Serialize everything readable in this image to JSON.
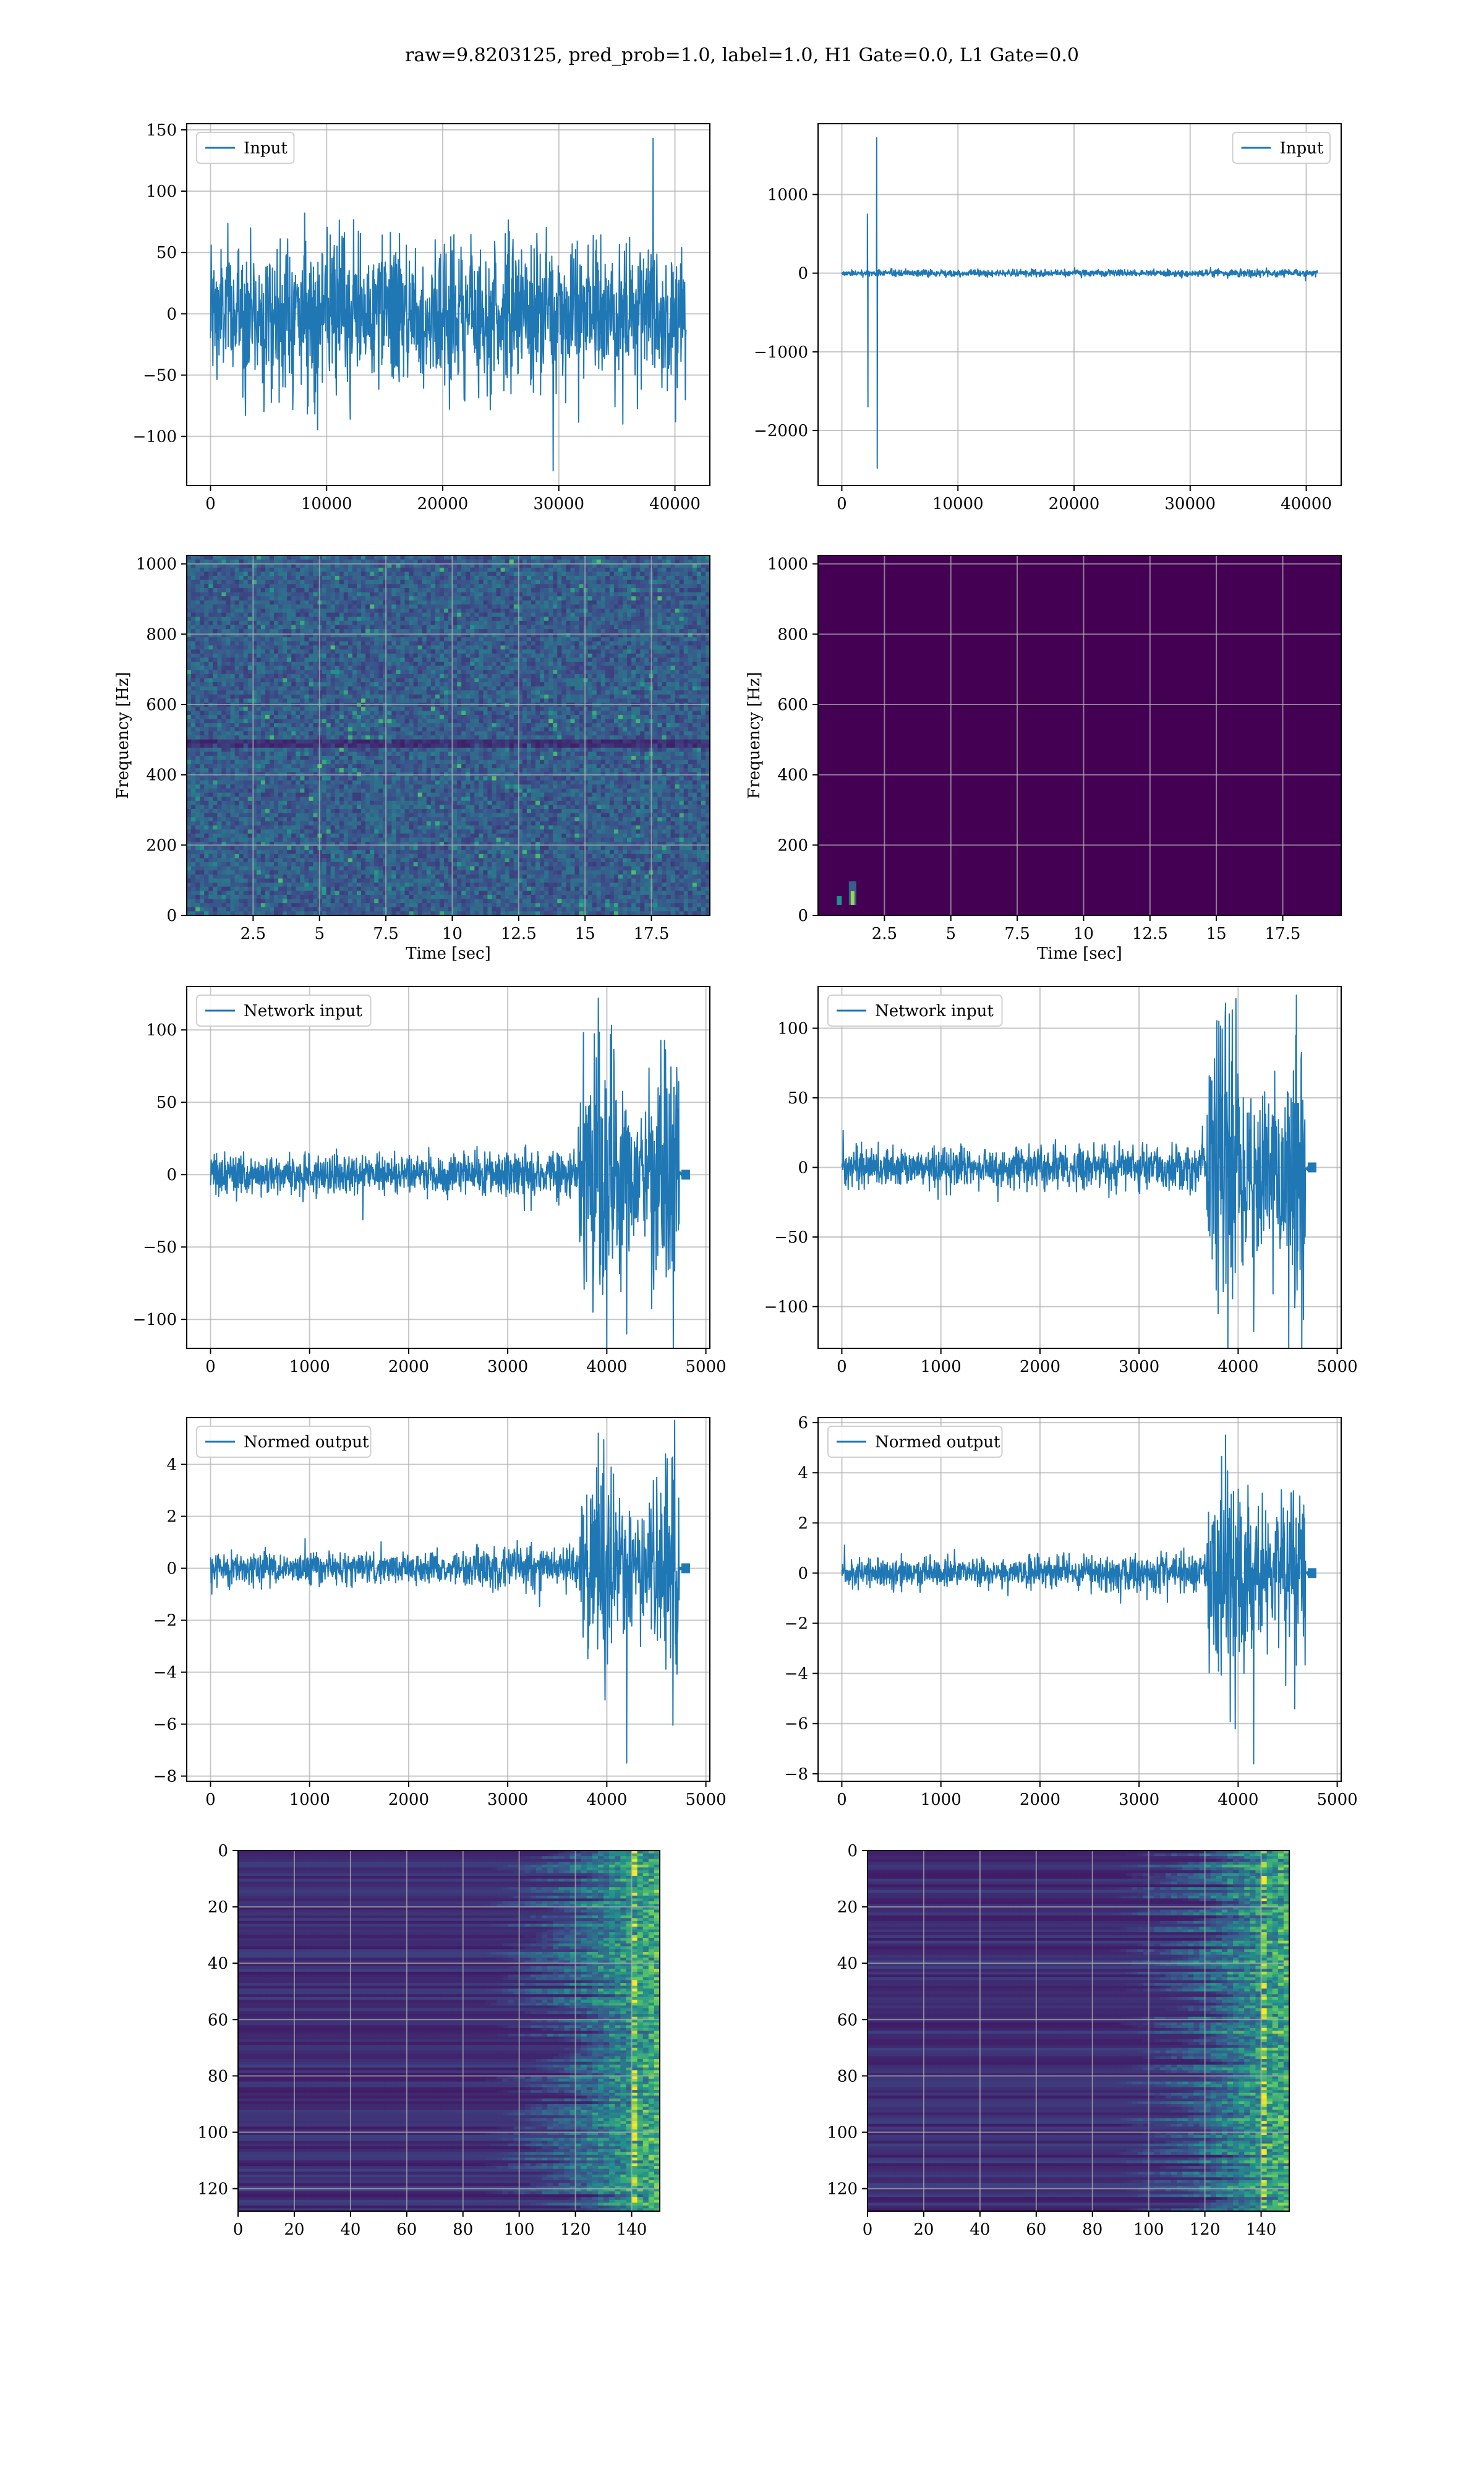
{
  "figure": {
    "title": "raw=9.8203125, pred_prob=1.0, label=1.0, H1 Gate=0.0, L1 Gate=0.0"
  },
  "colors": {
    "line": "#1f77b4",
    "grid": "#b0b0b0",
    "viridis": [
      "#440154",
      "#3b528b",
      "#21918c",
      "#5ec962",
      "#fde725"
    ]
  },
  "chart_data": [
    {
      "id": "input-h1",
      "type": "line",
      "row": 0,
      "col": 0,
      "signal": "noise",
      "length": 40960,
      "amplitude": 30,
      "peak": 143,
      "trough": -128,
      "series": [
        {
          "name": "Input"
        }
      ],
      "legend": "upper left",
      "xlim": [
        -2048,
        43008
      ],
      "ylim": [
        -140,
        155
      ],
      "xticks": [
        0,
        10000,
        20000,
        30000,
        40000
      ],
      "yticks": [
        -100,
        -50,
        0,
        50,
        100,
        150
      ],
      "xlabel": "",
      "ylabel": "",
      "grid": true
    },
    {
      "id": "input-l1",
      "type": "line",
      "row": 0,
      "col": 1,
      "signal": "glitch",
      "length": 40960,
      "amplitude": 22,
      "glitches": [
        {
          "x": 2200,
          "y": 750
        },
        {
          "x": 2250,
          "y": -1700
        },
        {
          "x": 3000,
          "y": 1720
        },
        {
          "x": 3050,
          "y": -2480
        }
      ],
      "series": [
        {
          "name": "Input"
        }
      ],
      "legend": "upper right",
      "xlim": [
        -2048,
        43008
      ],
      "ylim": [
        -2700,
        1900
      ],
      "xticks": [
        0,
        10000,
        20000,
        30000,
        40000
      ],
      "yticks": [
        -2000,
        -1000,
        0,
        1000
      ],
      "xlabel": "",
      "ylabel": "",
      "grid": true
    },
    {
      "id": "spectrogram-h1",
      "type": "heatmap",
      "row": 1,
      "col": 0,
      "pattern": "noise",
      "xlim": [
        0,
        19.7
      ],
      "ylim": [
        0,
        1024
      ],
      "xticks": [
        2.5,
        5.0,
        7.5,
        10.0,
        12.5,
        15.0,
        17.5
      ],
      "yticks": [
        0,
        200,
        400,
        600,
        800,
        1000
      ],
      "xlabel": "Time [sec]",
      "ylabel": "Frequency [Hz]",
      "grid": true
    },
    {
      "id": "spectrogram-l1",
      "type": "heatmap",
      "row": 1,
      "col": 1,
      "pattern": "empty",
      "xlim": [
        0,
        19.7
      ],
      "ylim": [
        0,
        1024
      ],
      "xticks": [
        2.5,
        5.0,
        7.5,
        10.0,
        12.5,
        15.0,
        17.5
      ],
      "yticks": [
        0,
        200,
        400,
        600,
        800,
        1000
      ],
      "xlabel": "Time [sec]",
      "ylabel": "Frequency [Hz]",
      "grid": true
    },
    {
      "id": "network-input-h1",
      "type": "line",
      "row": 2,
      "col": 0,
      "signal": "chirp",
      "length": 4770,
      "amplitude": 7,
      "peak": 122,
      "trough": -110,
      "series": [
        {
          "name": "Network input"
        }
      ],
      "legend": "upper left",
      "xlim": [
        -240,
        5040
      ],
      "ylim": [
        -120,
        130
      ],
      "xticks": [
        0,
        1000,
        2000,
        3000,
        4000,
        5000
      ],
      "yticks": [
        -100,
        -50,
        0,
        50,
        100
      ],
      "xlabel": "",
      "ylabel": "",
      "grid": true
    },
    {
      "id": "network-input-l1",
      "type": "line",
      "row": 2,
      "col": 1,
      "signal": "chirp",
      "length": 4720,
      "amplitude": 7,
      "peak": 118,
      "trough": -118,
      "series": [
        {
          "name": "Network input"
        }
      ],
      "legend": "upper left",
      "xlim": [
        -240,
        5040
      ],
      "ylim": [
        -130,
        130
      ],
      "xticks": [
        0,
        1000,
        2000,
        3000,
        4000,
        5000
      ],
      "yticks": [
        -100,
        -50,
        0,
        50,
        100
      ],
      "xlabel": "",
      "ylabel": "",
      "grid": true
    },
    {
      "id": "normed-output-h1",
      "type": "line",
      "row": 3,
      "col": 0,
      "signal": "chirp",
      "length": 4770,
      "amplitude": 0.3,
      "peak": 5.2,
      "trough": -7.5,
      "series": [
        {
          "name": "Normed output"
        }
      ],
      "legend": "upper left",
      "xlim": [
        -240,
        5040
      ],
      "ylim": [
        -8.2,
        5.8
      ],
      "xticks": [
        0,
        1000,
        2000,
        3000,
        4000,
        5000
      ],
      "yticks": [
        -8,
        -6,
        -4,
        -2,
        0,
        2,
        4
      ],
      "xlabel": "",
      "ylabel": "",
      "grid": true
    },
    {
      "id": "normed-output-l1",
      "type": "line",
      "row": 3,
      "col": 1,
      "signal": "chirp",
      "length": 4720,
      "amplitude": 0.3,
      "peak": 5.5,
      "trough": -7.6,
      "series": [
        {
          "name": "Normed output"
        }
      ],
      "legend": "upper left",
      "xlim": [
        -240,
        5040
      ],
      "ylim": [
        -8.3,
        6.2
      ],
      "xticks": [
        0,
        1000,
        2000,
        3000,
        4000,
        5000
      ],
      "yticks": [
        -8,
        -6,
        -4,
        -2,
        0,
        2,
        4,
        6
      ],
      "xlabel": "",
      "ylabel": "",
      "grid": true
    },
    {
      "id": "feature-map-h1",
      "type": "heatmap",
      "row": 4,
      "col": 0,
      "pattern": "features",
      "xlim": [
        0,
        150
      ],
      "ylim": [
        128,
        0
      ],
      "xticks": [
        0,
        20,
        40,
        60,
        80,
        100,
        120,
        140
      ],
      "yticks": [
        0,
        20,
        40,
        60,
        80,
        100,
        120
      ],
      "xlabel": "",
      "ylabel": "",
      "grid": true
    },
    {
      "id": "feature-map-l1",
      "type": "heatmap",
      "row": 4,
      "col": 1,
      "pattern": "features",
      "xlim": [
        0,
        150
      ],
      "ylim": [
        128,
        0
      ],
      "xticks": [
        0,
        20,
        40,
        60,
        80,
        100,
        120,
        140
      ],
      "yticks": [
        0,
        20,
        40,
        60,
        80,
        100,
        120
      ],
      "xlabel": "",
      "ylabel": "",
      "grid": true
    }
  ]
}
